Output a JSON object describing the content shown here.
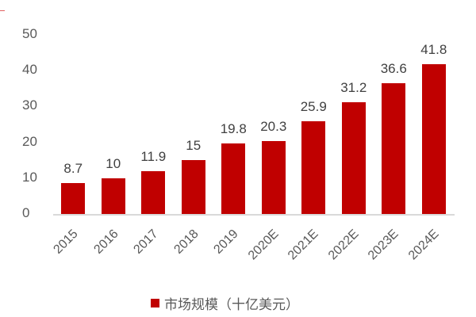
{
  "chart_data": {
    "type": "bar",
    "title": "",
    "xlabel": "",
    "ylabel": "",
    "ylim": [
      0,
      50
    ],
    "yticks": [
      0,
      10,
      20,
      30,
      40,
      50
    ],
    "categories": [
      "2015",
      "2016",
      "2017",
      "2018",
      "2019",
      "2020E",
      "2021E",
      "2022E",
      "2023E",
      "2024E"
    ],
    "series": [
      {
        "name": "市场规模（十亿美元）",
        "values": [
          8.7,
          10,
          11.9,
          15,
          19.8,
          20.3,
          25.9,
          31.2,
          36.6,
          41.8
        ],
        "color": "#c00000"
      }
    ],
    "value_labels": [
      "8.7",
      "10",
      "11.9",
      "15",
      "19.8",
      "20.3",
      "25.9",
      "31.2",
      "36.6",
      "41.8"
    ],
    "grid": false,
    "legend_position": "bottom"
  },
  "legend": {
    "label": "市场规模（十亿美元）"
  },
  "y_axis": {
    "ticks": [
      "0",
      "10",
      "20",
      "30",
      "40",
      "50"
    ]
  }
}
